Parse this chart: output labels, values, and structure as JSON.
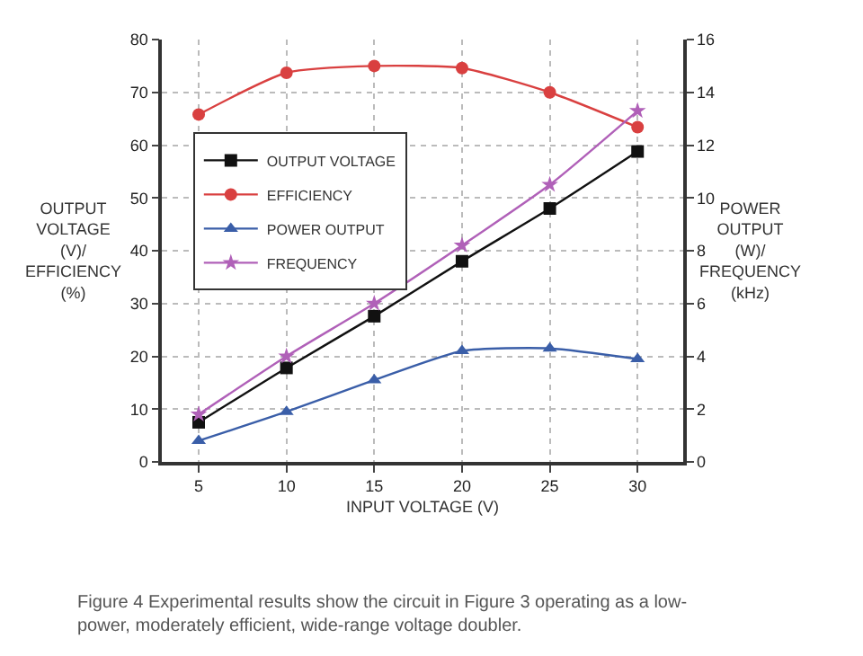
{
  "chart_data": {
    "type": "line",
    "xlabel": "INPUT VOLTAGE (V)",
    "ylabel": "OUTPUT\nVOLTAGE\n(V)/\nEFFICIENCY\n(%)",
    "y2label": "POWER\nOUTPUT\n(W)/\nFREQUENCY\n(kHz)",
    "x": [
      5,
      10,
      15,
      20,
      25,
      30
    ],
    "series": [
      {
        "name": "OUTPUT VOLTAGE",
        "color": "#111111",
        "marker": "square",
        "values": [
          7.5,
          17.8,
          27.6,
          38,
          48,
          58.8
        ]
      },
      {
        "name": "EFFICIENCY",
        "color": "#d94040",
        "marker": "circle",
        "values": [
          65.8,
          73.7,
          75,
          74.6,
          70,
          63.4
        ]
      },
      {
        "name": "POWER OUTPUT",
        "color": "#3a5ea8",
        "marker": "triangle",
        "axis": "y2",
        "values": [
          0.8,
          1.9,
          3.1,
          4.2,
          4.3,
          3.9
        ]
      },
      {
        "name": "FREQUENCY",
        "color": "#b060b8",
        "marker": "star",
        "axis": "y2",
        "values": [
          1.8,
          4.0,
          6.0,
          8.2,
          10.5,
          13.3
        ]
      }
    ],
    "xlim": [
      2.9,
      32.6
    ],
    "xticks": [
      5,
      10,
      15,
      20,
      25,
      30
    ],
    "ylim": [
      0,
      80
    ],
    "yticks": [
      0,
      10,
      20,
      30,
      40,
      50,
      60,
      70,
      80
    ],
    "y2lim": [
      0,
      16
    ],
    "y2ticks": [
      0,
      2,
      4,
      6,
      8,
      10,
      12,
      14,
      16
    ],
    "grid": true,
    "legend": "top left",
    "line_style": "solid",
    "annotations": [
      "Figure 4 Experimental results show the circuit in Figure 3 operating as a low-power, moderately efficient, wide-range voltage doubler."
    ]
  }
}
